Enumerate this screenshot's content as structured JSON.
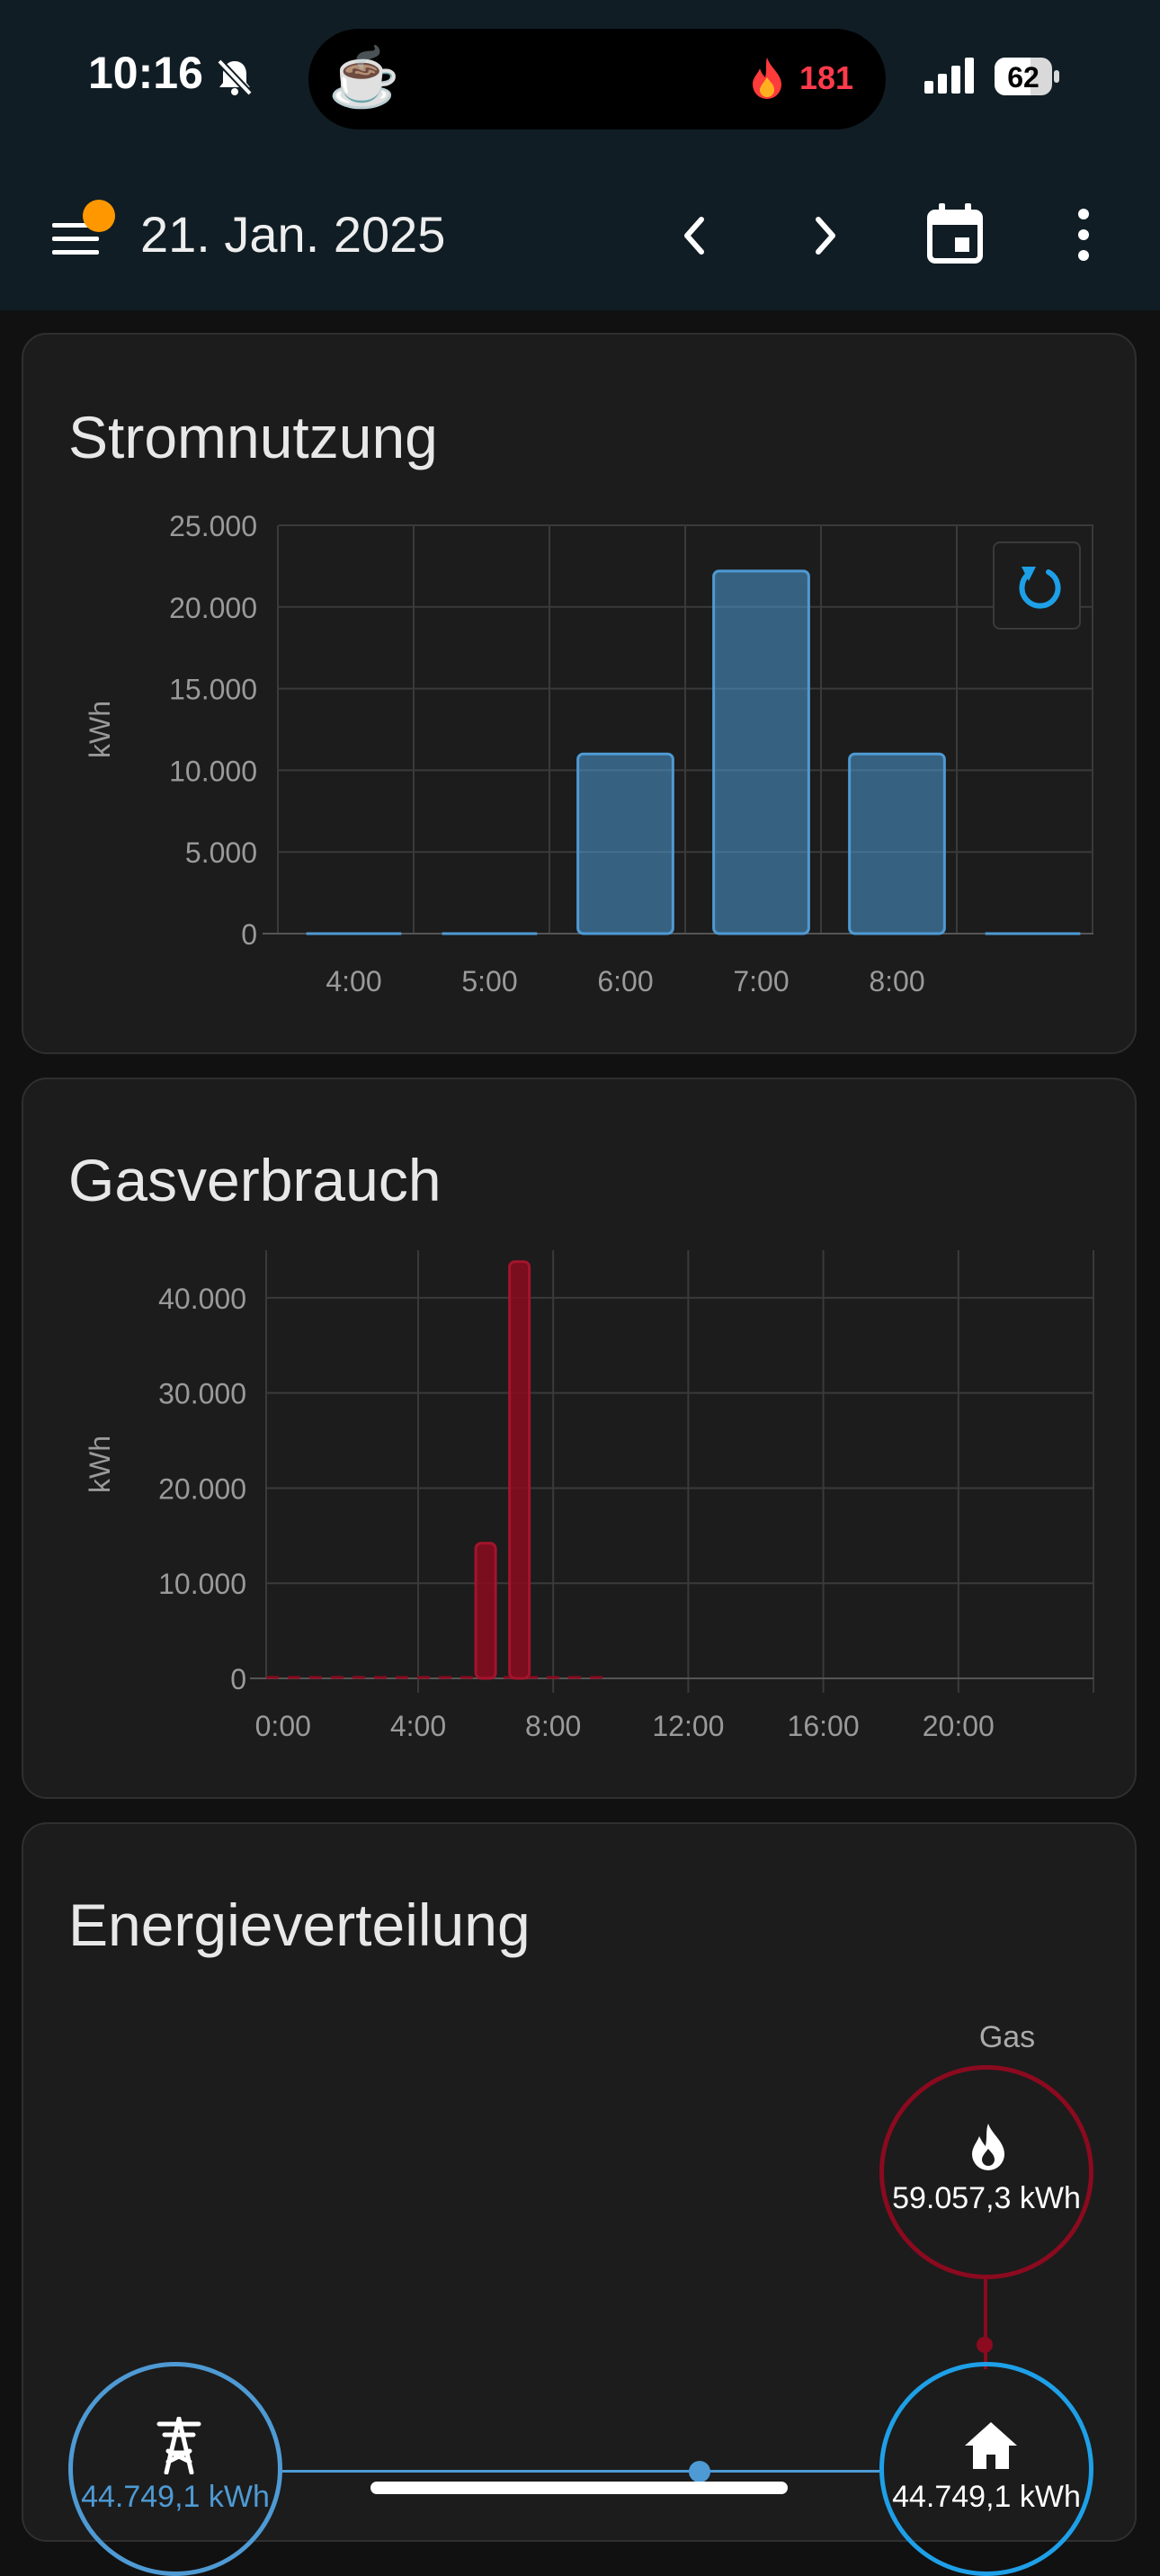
{
  "status": {
    "time": "10:16",
    "battery": "62",
    "activity_count": "181"
  },
  "header": {
    "date": "21. Jan. 2025"
  },
  "cards": {
    "electricity": {
      "title": "Stromnutzung"
    },
    "gas": {
      "title": "Gasverbrauch"
    },
    "distribution": {
      "title": "Energieverteilung"
    }
  },
  "distribution": {
    "gas_label": "Gas",
    "gas_value": "59.057,3 kWh",
    "grid_value": "44.749,1 kWh",
    "home_value": "44.749,1 kWh"
  },
  "colors": {
    "electric": "#4e9ad4",
    "gas": "#8b0a1f",
    "home": "#1ea0e8",
    "card": "#1c1c1c"
  },
  "chart_data": [
    {
      "type": "bar",
      "ylabel": "kWh",
      "ylim": [
        0,
        25000
      ],
      "yticks": [
        "0",
        "5.000",
        "10.000",
        "15.000",
        "20.000",
        "25.000"
      ],
      "ytick_values": [
        0,
        5000,
        10000,
        15000,
        20000,
        25000
      ],
      "categories": [
        "4:00",
        "5:00",
        "6:00",
        "7:00",
        "8:00",
        ""
      ],
      "values": [
        0,
        0,
        11000,
        22200,
        11000,
        0
      ]
    },
    {
      "type": "bar",
      "ylabel": "kWh",
      "ylim": [
        0,
        45000
      ],
      "yticks": [
        "0",
        "10.000",
        "20.000",
        "30.000",
        "40.000"
      ],
      "ytick_values": [
        0,
        10000,
        20000,
        30000,
        40000
      ],
      "xticks": [
        "0:00",
        "4:00",
        "8:00",
        "12:00",
        "16:00",
        "20:00"
      ],
      "xtick_values": [
        0,
        4,
        8,
        12,
        16,
        20
      ],
      "xlim": [
        -0.5,
        24
      ],
      "x": [
        6,
        7
      ],
      "values": [
        14200,
        43800
      ]
    }
  ]
}
